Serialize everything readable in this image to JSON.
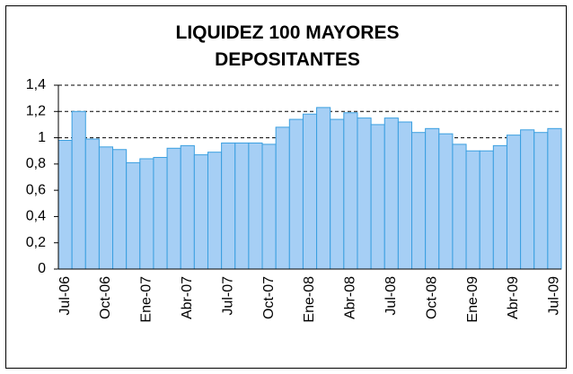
{
  "chart_data": {
    "type": "bar",
    "title": "LIQUIDEZ 100 MAYORES DEPOSITANTES",
    "categories": [
      "Jul-06",
      null,
      null,
      "Oct-06",
      null,
      null,
      "Ene-07",
      null,
      null,
      "Abr-07",
      null,
      null,
      "Jul-07",
      null,
      null,
      "Oct-07",
      null,
      null,
      "Ene-08",
      null,
      null,
      "Abr-08",
      null,
      null,
      "Jul-08",
      null,
      null,
      "Oct-08",
      null,
      null,
      "Ene-09",
      null,
      null,
      "Abr-09",
      null,
      null,
      "Jul-09"
    ],
    "values": [
      0.98,
      1.2,
      0.99,
      0.93,
      0.91,
      0.81,
      0.84,
      0.85,
      0.92,
      0.94,
      0.87,
      0.89,
      0.96,
      0.96,
      0.96,
      0.95,
      1.08,
      1.14,
      1.18,
      1.23,
      1.14,
      1.19,
      1.15,
      1.1,
      1.15,
      1.12,
      1.04,
      1.07,
      1.03,
      0.95,
      0.9,
      0.9,
      0.94,
      1.02,
      1.06,
      1.04,
      1.07
    ],
    "color": "#a6cff5",
    "ylim": [
      0,
      1.4
    ],
    "yticks": [
      0,
      {
        "value": 0.2,
        "label": "0,2"
      },
      {
        "value": 0.4,
        "label": "0,4"
      },
      {
        "value": 0.6,
        "label": "0,6"
      },
      {
        "value": 0.8,
        "label": "0,8"
      },
      1,
      {
        "value": 1.2,
        "label": "1,2"
      },
      {
        "value": 1.4,
        "label": "1,4"
      }
    ],
    "grid": true
  }
}
